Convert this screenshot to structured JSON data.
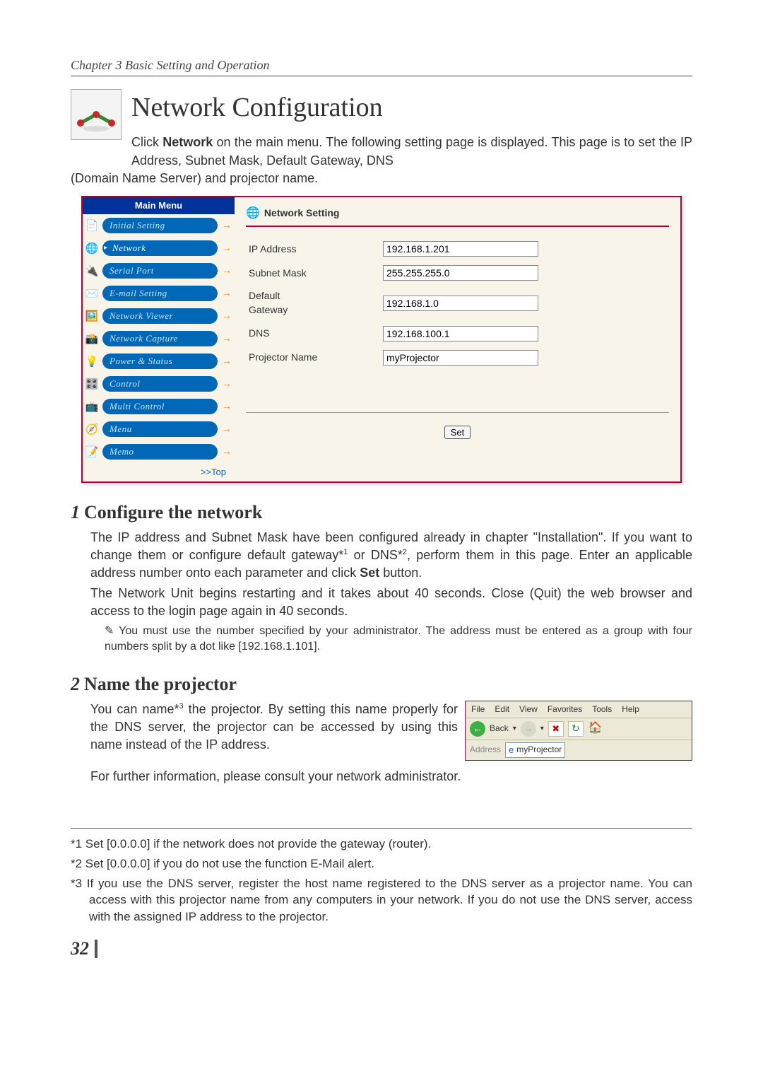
{
  "chapter_header": "Chapter 3 Basic Setting and Operation",
  "page_title": "Network Configuration",
  "intro_beside": "Click Network on the main menu. The following setting page is displayed. This page is to set the IP Address, Subnet Mask, Default Gateway, DNS",
  "intro_below": "(Domain Name Server) and projector name.",
  "screenshot": {
    "menu_header": "Main Menu",
    "items": [
      {
        "icon": "📄",
        "label": "Initial Setting",
        "active": false
      },
      {
        "icon": "🌐",
        "label": "Network",
        "active": true
      },
      {
        "icon": "🔌",
        "label": "Serial Port",
        "active": false
      },
      {
        "icon": "✉️",
        "label": "E-mail Setting",
        "active": false
      },
      {
        "icon": "🖼️",
        "label": "Network Viewer",
        "active": false
      },
      {
        "icon": "📸",
        "label": "Network Capture",
        "active": false
      },
      {
        "icon": "💡",
        "label": "Power & Status",
        "active": false
      },
      {
        "icon": "🎛️",
        "label": "Control",
        "active": false
      },
      {
        "icon": "📺",
        "label": "Multi Control",
        "active": false
      },
      {
        "icon": "🧭",
        "label": "Menu",
        "active": false
      },
      {
        "icon": "📝",
        "label": "Memo",
        "active": false
      }
    ],
    "top_link": ">>Top",
    "section_title": "Network Setting",
    "fields": [
      {
        "label": "IP Address",
        "value": "192.168.1.201"
      },
      {
        "label": "Subnet Mask",
        "value": "255.255.255.0"
      },
      {
        "label": "Default Gateway",
        "value": "192.168.1.0"
      },
      {
        "label": "DNS",
        "value": "192.168.100.1"
      },
      {
        "label": "Projector Name",
        "value": "myProjector"
      }
    ],
    "set_button": "Set",
    "colors": {
      "frame_border": "#b5003c",
      "menu_header_bg": "#003399",
      "menu_pill_bg": "#0068b7",
      "page_bg": "#f8f4e9"
    }
  },
  "section1": {
    "num": "1",
    "title": "Configure the network",
    "p1": "The IP address and Subnet Mask have been configured already in chapter \"Installation\". If you want to change them or configure default gateway*¹ or DNS*², perform them in this page. Enter an applicable address number onto each parameter and click Set button.",
    "p2": "The Network Unit begins restarting and it takes about 40 seconds. Close (Quit) the web browser and access to the login page again in 40 seconds.",
    "note": "✎ You must use the number specified by your administrator. The address must be entered as a group with four numbers split by a dot like [192.168.1.101]."
  },
  "section2": {
    "num": "2",
    "title": "Name the projector",
    "p1": "You can name*³ the projector. By setting this name properly for the DNS server, the projector can be accessed by using this name instead of the IP address.",
    "p2": "For further information, please consult your network administrator."
  },
  "browser_mock": {
    "menus": [
      "File",
      "Edit",
      "View",
      "Favorites",
      "Tools",
      "Help"
    ],
    "back_label": "Back",
    "addr_label": "Address",
    "addr_value": "myProjector"
  },
  "footnotes": [
    "*1 Set [0.0.0.0] if the network does not provide the gateway (router).",
    "*2 Set [0.0.0.0] if you do not use the function E-Mail alert.",
    "*3 If you use the DNS server, register the host name registered to the DNS server as a projector name. You can access with this projector name from any computers in your network. If you do not use the DNS server, access with the assigned IP address to the projector."
  ],
  "page_number": "32"
}
